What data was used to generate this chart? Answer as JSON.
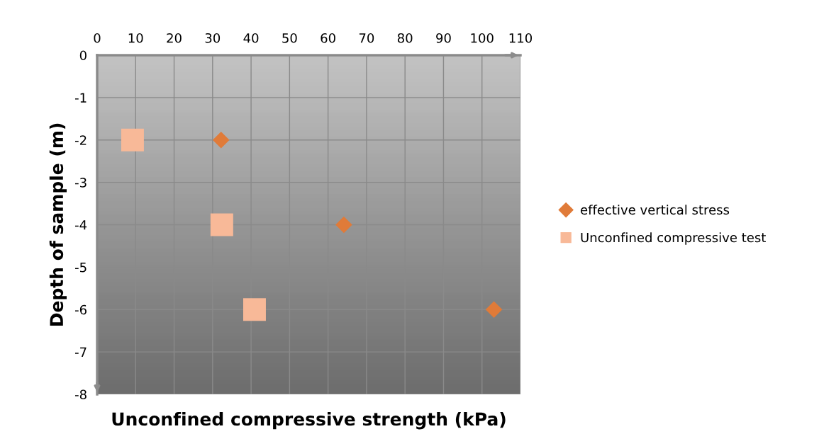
{
  "chart_data": {
    "type": "scatter",
    "xlabel": "Unconfined compressive strength (kPa)",
    "ylabel": "Depth of sample (m)",
    "series": [
      {
        "name": "effective vertical stress",
        "color": "#e07b39",
        "marker": "diamond",
        "x": [
          32.2,
          64.1,
          103.1
        ],
        "values": [
          -2,
          -4,
          -6
        ]
      },
      {
        "name": "Unconfined compressive test",
        "color": "#f8b998",
        "marker": "square",
        "x": [
          9.2,
          32.4,
          40.9
        ],
        "values": [
          -2,
          -4,
          -6
        ]
      }
    ],
    "xlim": [
      0,
      110
    ],
    "xticks": [
      0,
      10,
      20,
      30,
      40,
      50,
      60,
      70,
      80,
      90,
      100,
      110
    ],
    "ylim": [
      -8,
      0
    ],
    "yticks": [
      -8,
      -7,
      -6,
      -5,
      -4,
      -3,
      -2,
      -1,
      0
    ],
    "grid": true,
    "legend": "right"
  }
}
